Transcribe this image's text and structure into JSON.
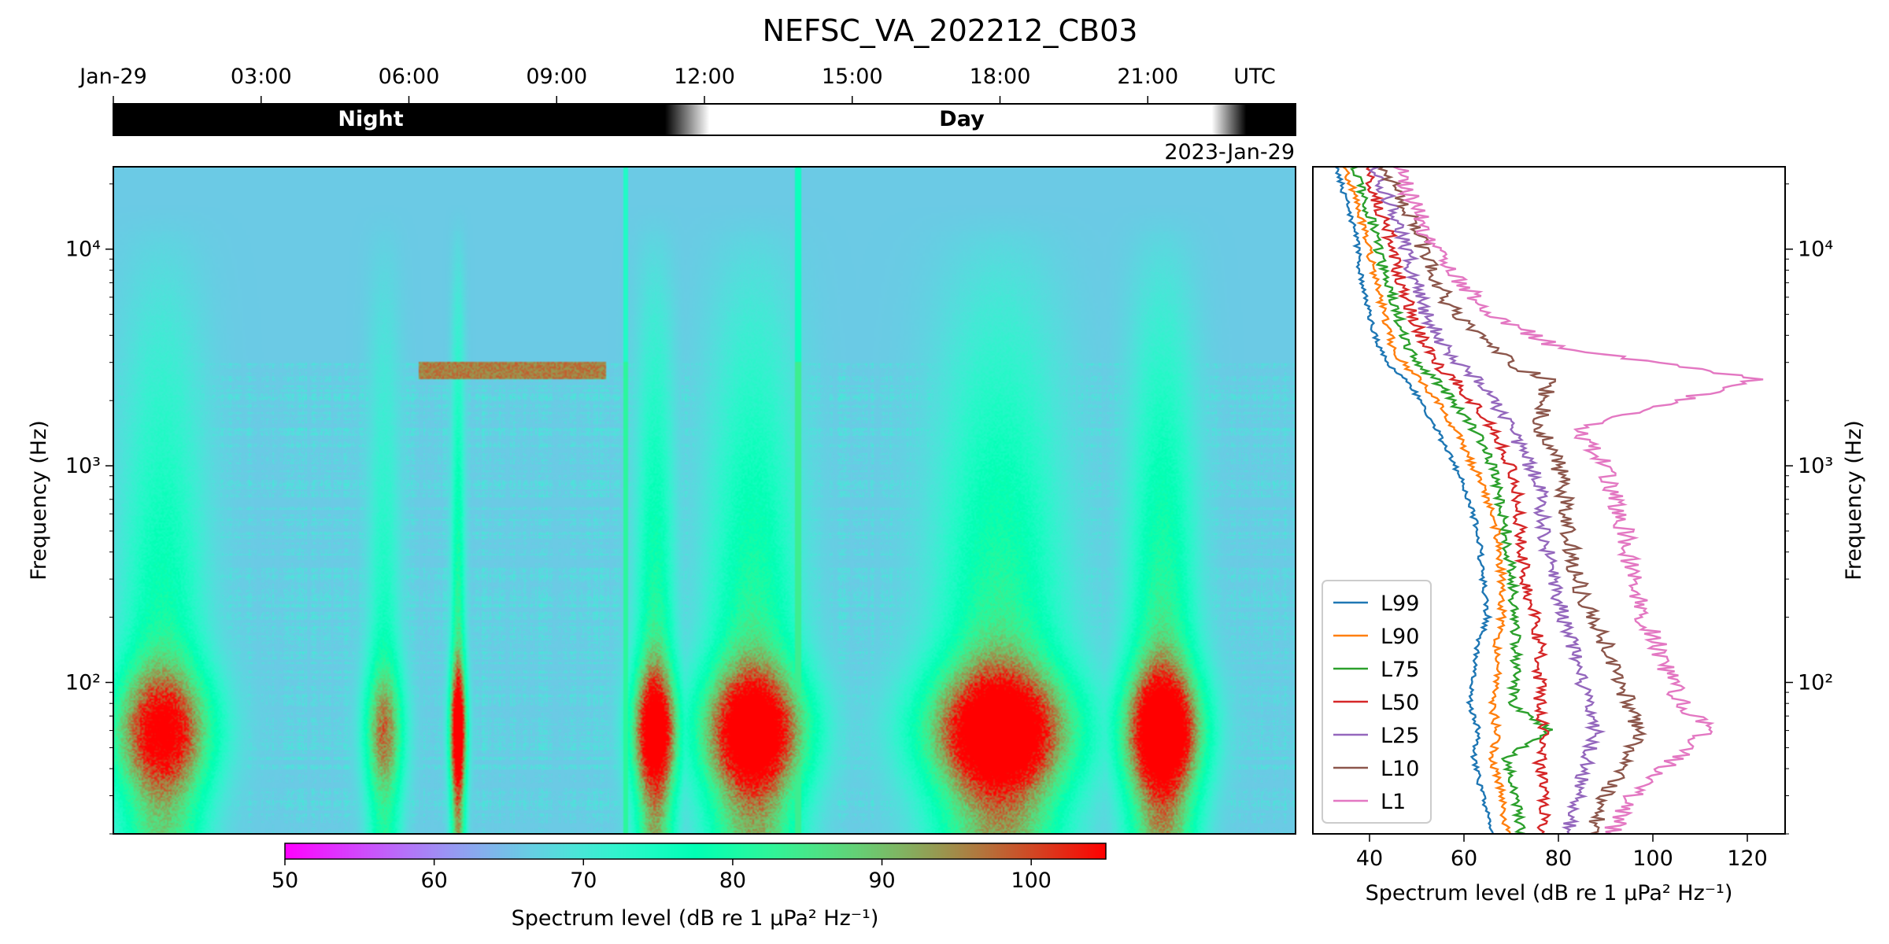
{
  "title": "NEFSC_VA_202212_CB03",
  "date_label": "2023-Jan-29",
  "time_axis": {
    "ticks": [
      "Jan-29",
      "03:00",
      "06:00",
      "09:00",
      "12:00",
      "15:00",
      "18:00",
      "21:00"
    ],
    "unit": "UTC",
    "range_hours": [
      0,
      24
    ]
  },
  "daynight": {
    "night_label": "Night",
    "day_label": "Day",
    "transitions_hours": {
      "dawn_start": 11.2,
      "dawn_end": 12.1,
      "dusk_start": 22.3,
      "dusk_end": 23.0
    },
    "colors": {
      "night": "#000000",
      "day": "#ffffff"
    }
  },
  "colorbar": {
    "ticks": [
      50,
      60,
      70,
      80,
      90,
      100
    ],
    "range": [
      50,
      105
    ],
    "label": "Spectrum level (dB re 1 μPa² Hz⁻¹)",
    "colormap": "rainbow"
  },
  "chart_data": [
    {
      "type": "heatmap",
      "ylabel": "Frequency (Hz)",
      "y_scale": "log",
      "y_ticks": [
        "10²",
        "10³",
        "10⁴"
      ],
      "ylim_hz": [
        20,
        24000
      ],
      "xlim_hours": [
        0,
        24
      ],
      "value_range_db": [
        50,
        105
      ],
      "background_db": 66,
      "features": [
        {
          "kind": "low_freq_blob",
          "t": 1.0,
          "width": 1.5,
          "db": 95
        },
        {
          "kind": "low_freq_blob",
          "t": 5.5,
          "width": 0.6,
          "db": 86
        },
        {
          "kind": "low_freq_blob",
          "t": 7.0,
          "width": 0.25,
          "db": 102
        },
        {
          "kind": "low_freq_blob",
          "t": 11.0,
          "width": 0.7,
          "db": 100
        },
        {
          "kind": "low_freq_blob",
          "t": 13.0,
          "width": 1.6,
          "db": 101
        },
        {
          "kind": "low_freq_blob",
          "t": 18.0,
          "width": 2.2,
          "db": 103
        },
        {
          "kind": "low_freq_blob",
          "t": 21.3,
          "width": 1.2,
          "db": 104
        },
        {
          "kind": "vessel_tone_band",
          "t_start": 6.2,
          "t_end": 10.0,
          "f_hz": [
            2500,
            3000
          ],
          "db": 96
        },
        {
          "kind": "vertical_line",
          "t": 10.4,
          "db": 82
        },
        {
          "kind": "vertical_line",
          "t": 13.9,
          "db": 84
        }
      ],
      "high_freq_cutoff_hz": 3000,
      "high_freq_db": 50
    },
    {
      "type": "line",
      "xlabel": "Spectrum level (dB re 1 μPa² Hz⁻¹)",
      "ylabel": "Frequency (Hz)",
      "y_scale": "log",
      "xlim": [
        28,
        128
      ],
      "ylim": [
        20,
        24000
      ],
      "x_ticks": [
        40,
        60,
        80,
        100,
        120
      ],
      "y_ticks": [
        "10²",
        "10³",
        "10⁴"
      ],
      "legend_position": "lower-left",
      "y": [
        20,
        30,
        45,
        60,
        80,
        100,
        150,
        200,
        300,
        500,
        800,
        1000,
        1500,
        2500,
        2800,
        3500,
        5000,
        8000,
        12000,
        24000
      ],
      "series": [
        {
          "name": "L99",
          "color": "#1f77b4",
          "values": [
            66,
            64,
            62,
            63,
            61,
            62,
            63,
            65,
            64,
            63,
            60,
            58,
            54,
            48,
            45,
            42,
            40,
            38,
            37,
            33
          ]
        },
        {
          "name": "L90",
          "color": "#ff7f0e",
          "values": [
            69,
            68,
            66,
            67,
            66,
            67,
            67,
            68,
            68,
            67,
            64,
            62,
            58,
            51,
            48,
            45,
            43,
            41,
            39,
            35
          ]
        },
        {
          "name": "L75",
          "color": "#2ca02c",
          "values": [
            72,
            71,
            69,
            78,
            70,
            71,
            71,
            71,
            70,
            69,
            67,
            66,
            62,
            54,
            51,
            48,
            46,
            43,
            41,
            37
          ]
        },
        {
          "name": "L50",
          "color": "#d62728",
          "values": [
            77,
            77,
            76,
            77,
            76,
            76,
            76,
            75,
            73,
            72,
            71,
            70,
            66,
            58,
            55,
            52,
            49,
            46,
            44,
            39
          ]
        },
        {
          "name": "L25",
          "color": "#9467bd",
          "values": [
            82,
            84,
            86,
            88,
            86,
            85,
            83,
            81,
            79,
            77,
            76,
            74,
            70,
            63,
            60,
            56,
            52,
            49,
            47,
            41
          ]
        },
        {
          "name": "L10",
          "color": "#8c564b",
          "values": [
            87,
            90,
            95,
            97,
            95,
            93,
            90,
            87,
            84,
            82,
            81,
            80,
            76,
            78,
            72,
            66,
            58,
            53,
            50,
            43
          ]
        },
        {
          "name": "L1",
          "color": "#e377c2",
          "values": [
            91,
            96,
            105,
            112,
            106,
            104,
            101,
            98,
            96,
            94,
            91,
            90,
            84,
            122,
            110,
            80,
            66,
            57,
            52,
            46
          ]
        }
      ]
    }
  ]
}
